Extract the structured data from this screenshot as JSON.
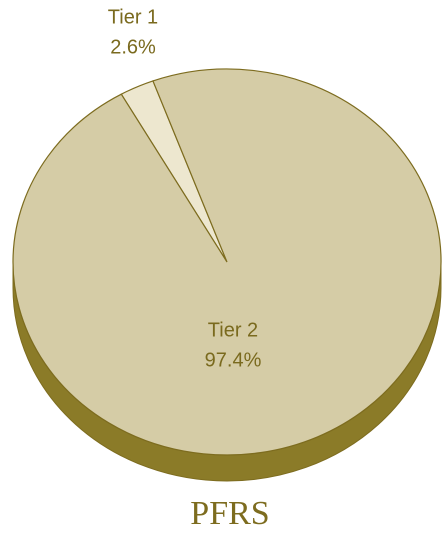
{
  "chart_data": {
    "type": "pie",
    "title": "PFRS",
    "categories": [
      "Tier 1",
      "Tier 2"
    ],
    "values": [
      2.6,
      97.4
    ],
    "value_labels": [
      "2.6%",
      "97.4%"
    ],
    "colors": [
      "#ede7cf",
      "#d5cca6"
    ],
    "edge_color": "#7d6c1f",
    "side_color": "#8b7b28"
  }
}
